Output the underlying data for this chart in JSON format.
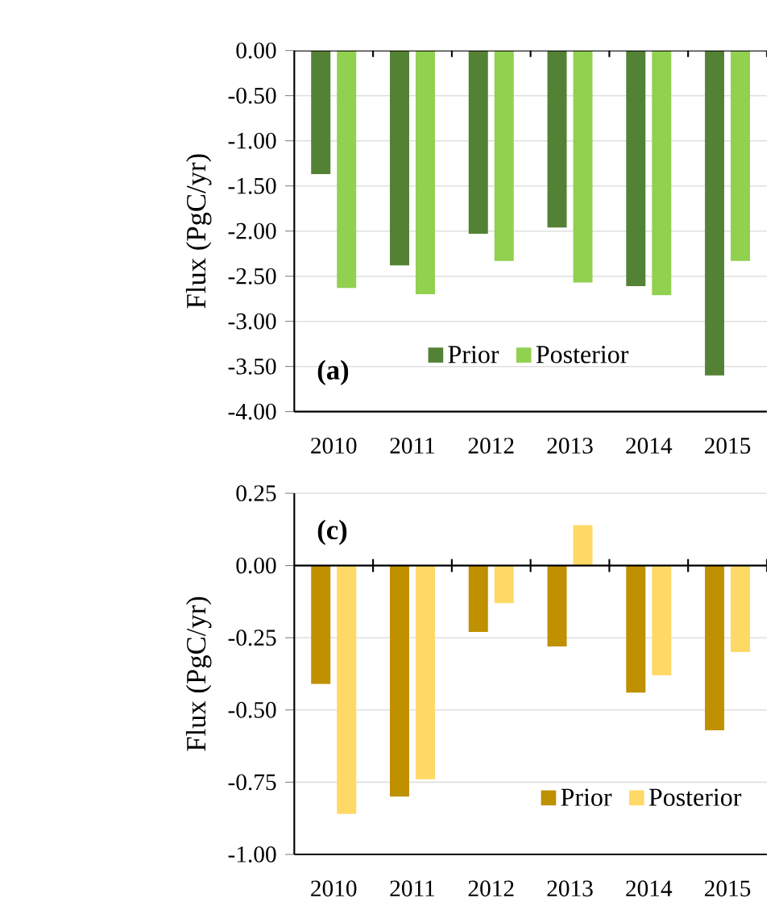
{
  "chart_data": [
    {
      "type": "bar",
      "categories": [
        "2010",
        "2011",
        "2012",
        "2013",
        "2014",
        "2015"
      ],
      "ylabel": "Flux (PgC/yr)",
      "series": [
        {
          "name": "Prior",
          "color": "#548235",
          "values": [
            -1.37,
            -2.38,
            -2.03,
            -1.96,
            -2.61,
            -3.6
          ]
        },
        {
          "name": "Posterior",
          "color": "#92d050",
          "values": [
            -2.63,
            -2.7,
            -2.33,
            -2.57,
            -2.71,
            -2.33
          ]
        }
      ],
      "ylim": [
        -4,
        0
      ],
      "yticks": [
        {
          "value": -4,
          "label": "-4.00"
        },
        {
          "value": -3.5,
          "label": "-3.50"
        },
        {
          "value": -3,
          "label": "-3.00"
        },
        {
          "value": -2.5,
          "label": "-2.50"
        },
        {
          "value": -2,
          "label": "-2.00"
        },
        {
          "value": -1.5,
          "label": "-1.50"
        },
        {
          "value": -1,
          "label": "-1.00"
        },
        {
          "value": -0.5,
          "label": "-0.50"
        },
        {
          "value": 0,
          "label": "0.00"
        }
      ],
      "grid": "y",
      "legend": "bottom",
      "annotations": [
        "(a)"
      ]
    },
    {
      "type": "bar",
      "categories": [
        "2010",
        "2011",
        "2012",
        "2013",
        "2014",
        "2015"
      ],
      "ylabel": "Flux (PgC/yr)",
      "series": [
        {
          "name": "Prior",
          "color": "#bf9000",
          "values": [
            -0.41,
            -0.8,
            -0.23,
            -0.28,
            -0.44,
            -0.57
          ]
        },
        {
          "name": "Posterior",
          "color": "#ffd966",
          "values": [
            -0.86,
            -0.74,
            -0.13,
            0.14,
            -0.38,
            -0.3
          ]
        }
      ],
      "ylim": [
        -1,
        0.25
      ],
      "yticks": [
        {
          "value": -1,
          "label": "-1.00"
        },
        {
          "value": -0.75,
          "label": "-0.75"
        },
        {
          "value": -0.5,
          "label": "-0.50"
        },
        {
          "value": -0.25,
          "label": "-0.25"
        },
        {
          "value": 0,
          "label": "0.00"
        },
        {
          "value": 0.25,
          "label": "0.25"
        }
      ],
      "grid": "y",
      "legend": "bottom right",
      "annotations": [
        "(c)"
      ]
    }
  ]
}
